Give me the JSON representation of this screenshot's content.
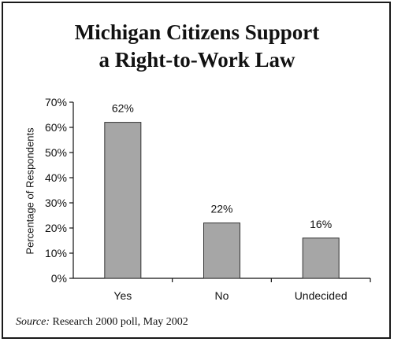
{
  "chart_data": {
    "type": "bar",
    "title_line1": "Michigan Citizens Support",
    "title_line2": "a Right-to-Work Law",
    "ylabel": "Percentage of Respondents",
    "xlabel": "",
    "categories": [
      "Yes",
      "No",
      "Undecided"
    ],
    "values": [
      62,
      22,
      16
    ],
    "data_labels": [
      "62%",
      "22%",
      "16%"
    ],
    "ylim": [
      0,
      70
    ],
    "yticks": [
      0,
      10,
      20,
      30,
      40,
      50,
      60,
      70
    ],
    "ytick_labels": [
      "0%",
      "10%",
      "20%",
      "30%",
      "40%",
      "50%",
      "60%",
      "70%"
    ],
    "bar_color": "#a6a6a6",
    "grid": false
  },
  "source": {
    "label": "Source:",
    "text": "Research 2000 poll, May 2002"
  }
}
